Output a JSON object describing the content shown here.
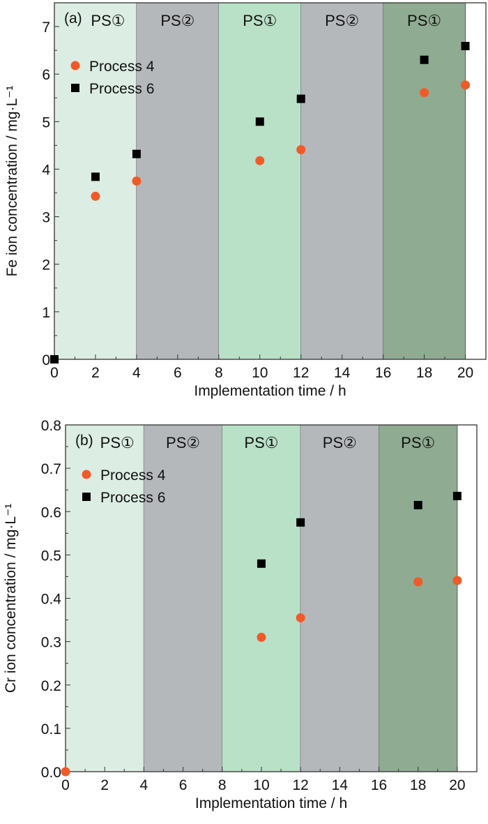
{
  "chart_data": [
    {
      "type": "scatter",
      "panel_label": "(a)",
      "xlabel": "Implementation time / h",
      "ylabel": "Fe ion concentration / mg·L⁻¹",
      "xlim": [
        0,
        21
      ],
      "ylim": [
        0,
        7.5
      ],
      "xticks": [
        0,
        2,
        4,
        6,
        8,
        10,
        12,
        14,
        16,
        18,
        20
      ],
      "yticks": [
        0,
        1,
        2,
        3,
        4,
        5,
        6,
        7
      ],
      "ytick_labels": [
        "0",
        "1",
        "2",
        "3",
        "4",
        "5",
        "6",
        "7"
      ],
      "legend_position": "upper-left",
      "regions": [
        {
          "label": "PS①",
          "from": 0,
          "to": 4,
          "color": "#dcede3"
        },
        {
          "label": "PS②",
          "from": 4,
          "to": 8,
          "color": "#b5b8bb"
        },
        {
          "label": "PS①",
          "from": 8,
          "to": 12,
          "color": "#b9e1c7"
        },
        {
          "label": "PS②",
          "from": 12,
          "to": 16,
          "color": "#b5b8bb"
        },
        {
          "label": "PS①",
          "from": 16,
          "to": 20,
          "color": "#8fab92"
        }
      ],
      "series": [
        {
          "name": "Process 4",
          "marker": "circle",
          "color": "#f05a28",
          "x": [
            2,
            4,
            10,
            12,
            18,
            20
          ],
          "y": [
            3.43,
            3.75,
            4.18,
            4.41,
            5.61,
            5.77
          ]
        },
        {
          "name": "Process 6",
          "marker": "square",
          "color": "#000000",
          "x": [
            0,
            2,
            4,
            10,
            12,
            18,
            20
          ],
          "y": [
            0,
            3.84,
            4.32,
            5.0,
            5.48,
            6.3,
            6.59
          ]
        }
      ]
    },
    {
      "type": "scatter",
      "panel_label": "(b)",
      "xlabel": "Implementation time / h",
      "ylabel": "Cr ion concentration / mg·L⁻¹",
      "xlim": [
        0,
        21
      ],
      "ylim": [
        0,
        0.8
      ],
      "xticks": [
        0,
        2,
        4,
        6,
        8,
        10,
        12,
        14,
        16,
        18,
        20
      ],
      "yticks": [
        0,
        0.1,
        0.2,
        0.3,
        0.4,
        0.5,
        0.6,
        0.7,
        0.8
      ],
      "ytick_labels": [
        "0.0",
        "0.1",
        "0.2",
        "0.3",
        "0.4",
        "0.5",
        "0.6",
        "0.7",
        "0.8"
      ],
      "legend_position": "upper-left",
      "regions": [
        {
          "label": "PS①",
          "from": 0,
          "to": 4,
          "color": "#dcede3"
        },
        {
          "label": "PS②",
          "from": 4,
          "to": 8,
          "color": "#b5b8bb"
        },
        {
          "label": "PS①",
          "from": 8,
          "to": 12,
          "color": "#b9e1c7"
        },
        {
          "label": "PS②",
          "from": 12,
          "to": 16,
          "color": "#b5b8bb"
        },
        {
          "label": "PS①",
          "from": 16,
          "to": 20,
          "color": "#8fab92"
        }
      ],
      "series": [
        {
          "name": "Process 4",
          "marker": "circle",
          "color": "#f05a28",
          "x": [
            0,
            10,
            12,
            18,
            20
          ],
          "y": [
            0,
            0.31,
            0.355,
            0.438,
            0.441
          ]
        },
        {
          "name": "Process 6",
          "marker": "square",
          "color": "#000000",
          "x": [
            10,
            12,
            18,
            20
          ],
          "y": [
            0.48,
            0.575,
            0.615,
            0.636
          ]
        }
      ]
    }
  ]
}
